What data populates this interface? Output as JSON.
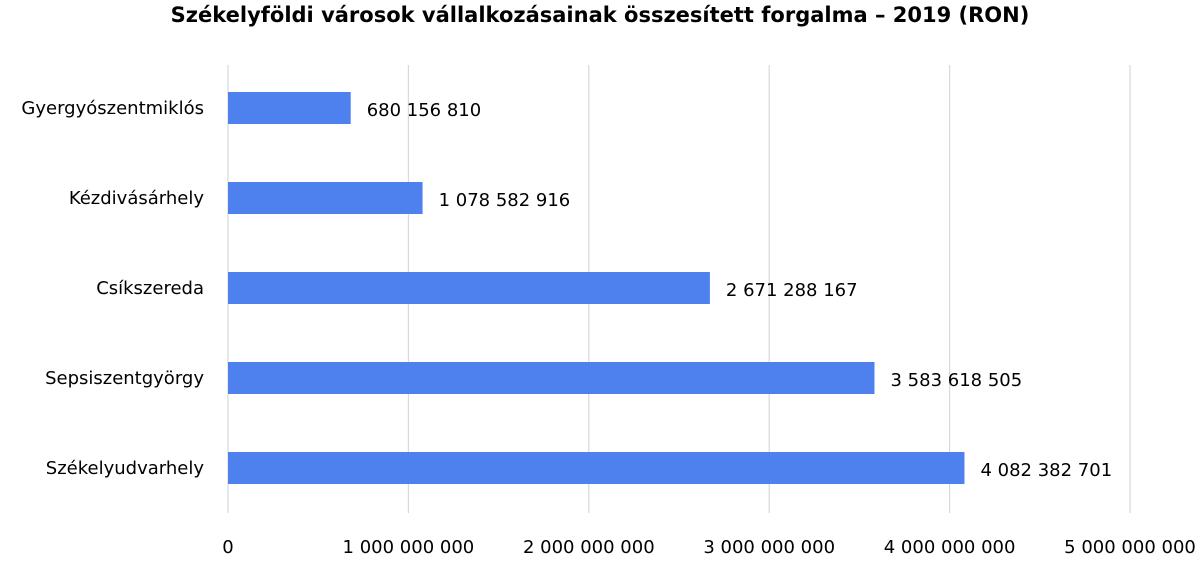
{
  "chart_data": {
    "type": "bar",
    "orientation": "horizontal",
    "title": "Székelyföldi városok vállalkozásainak összesített  forgalma – 2019 (RON)",
    "xlabel": "",
    "ylabel": "",
    "categories": [
      "Gyergyószentmiklós",
      "Kézdivásárhely",
      "Csíkszereda",
      "Sepsiszentgyörgy",
      "Székelyudvarhely"
    ],
    "values": [
      680156810,
      1078582916,
      2671288167,
      3583618505,
      4082382701
    ],
    "data_labels": [
      "680 156 810",
      "1 078 582 916",
      "2 671 288 167",
      "3 583 618 505",
      "4 082 382 701"
    ],
    "xlim": [
      0,
      5000000000
    ],
    "x_ticks": [
      0,
      1000000000,
      2000000000,
      3000000000,
      4000000000,
      5000000000
    ],
    "x_tick_labels": [
      "0",
      "1 000 000 000",
      "2 000 000 000",
      "3 000 000 000",
      "4 000 000 000",
      "5 000 000 000"
    ],
    "grid": true,
    "legend": "none",
    "bar_color": "#4e81ee",
    "grid_color": "#d9d9d9"
  }
}
